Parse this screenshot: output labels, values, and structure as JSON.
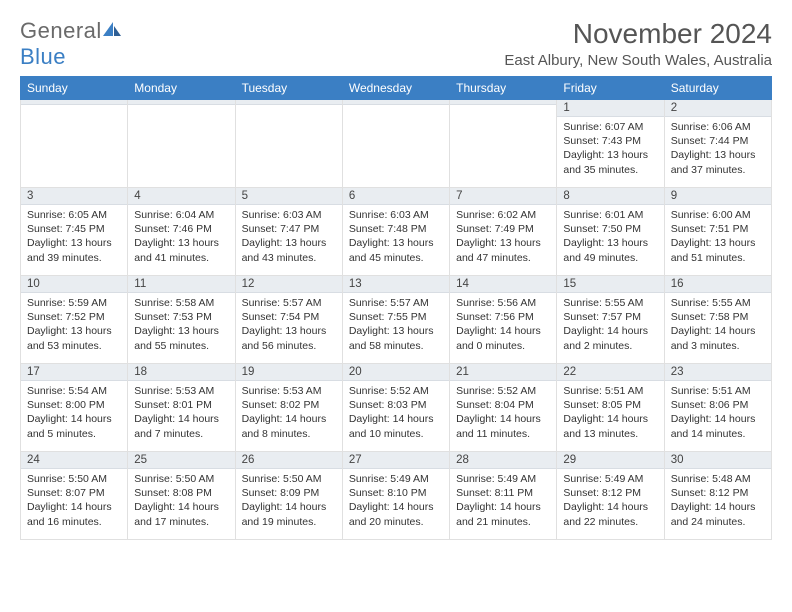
{
  "logo": {
    "text1": "General",
    "text2": "Blue"
  },
  "colors": {
    "accent": "#3b7fc4",
    "header_bg": "#3b7fc4",
    "daynum_bg": "#e9edf1",
    "border": "#e0e0e0",
    "text": "#333333",
    "title": "#555555"
  },
  "title": "November 2024",
  "location": "East Albury, New South Wales, Australia",
  "day_headers": [
    "Sunday",
    "Monday",
    "Tuesday",
    "Wednesday",
    "Thursday",
    "Friday",
    "Saturday"
  ],
  "weeks": [
    [
      {
        "n": "",
        "sr": "",
        "ss": "",
        "dl": ""
      },
      {
        "n": "",
        "sr": "",
        "ss": "",
        "dl": ""
      },
      {
        "n": "",
        "sr": "",
        "ss": "",
        "dl": ""
      },
      {
        "n": "",
        "sr": "",
        "ss": "",
        "dl": ""
      },
      {
        "n": "",
        "sr": "",
        "ss": "",
        "dl": ""
      },
      {
        "n": "1",
        "sr": "Sunrise: 6:07 AM",
        "ss": "Sunset: 7:43 PM",
        "dl": "Daylight: 13 hours and 35 minutes."
      },
      {
        "n": "2",
        "sr": "Sunrise: 6:06 AM",
        "ss": "Sunset: 7:44 PM",
        "dl": "Daylight: 13 hours and 37 minutes."
      }
    ],
    [
      {
        "n": "3",
        "sr": "Sunrise: 6:05 AM",
        "ss": "Sunset: 7:45 PM",
        "dl": "Daylight: 13 hours and 39 minutes."
      },
      {
        "n": "4",
        "sr": "Sunrise: 6:04 AM",
        "ss": "Sunset: 7:46 PM",
        "dl": "Daylight: 13 hours and 41 minutes."
      },
      {
        "n": "5",
        "sr": "Sunrise: 6:03 AM",
        "ss": "Sunset: 7:47 PM",
        "dl": "Daylight: 13 hours and 43 minutes."
      },
      {
        "n": "6",
        "sr": "Sunrise: 6:03 AM",
        "ss": "Sunset: 7:48 PM",
        "dl": "Daylight: 13 hours and 45 minutes."
      },
      {
        "n": "7",
        "sr": "Sunrise: 6:02 AM",
        "ss": "Sunset: 7:49 PM",
        "dl": "Daylight: 13 hours and 47 minutes."
      },
      {
        "n": "8",
        "sr": "Sunrise: 6:01 AM",
        "ss": "Sunset: 7:50 PM",
        "dl": "Daylight: 13 hours and 49 minutes."
      },
      {
        "n": "9",
        "sr": "Sunrise: 6:00 AM",
        "ss": "Sunset: 7:51 PM",
        "dl": "Daylight: 13 hours and 51 minutes."
      }
    ],
    [
      {
        "n": "10",
        "sr": "Sunrise: 5:59 AM",
        "ss": "Sunset: 7:52 PM",
        "dl": "Daylight: 13 hours and 53 minutes."
      },
      {
        "n": "11",
        "sr": "Sunrise: 5:58 AM",
        "ss": "Sunset: 7:53 PM",
        "dl": "Daylight: 13 hours and 55 minutes."
      },
      {
        "n": "12",
        "sr": "Sunrise: 5:57 AM",
        "ss": "Sunset: 7:54 PM",
        "dl": "Daylight: 13 hours and 56 minutes."
      },
      {
        "n": "13",
        "sr": "Sunrise: 5:57 AM",
        "ss": "Sunset: 7:55 PM",
        "dl": "Daylight: 13 hours and 58 minutes."
      },
      {
        "n": "14",
        "sr": "Sunrise: 5:56 AM",
        "ss": "Sunset: 7:56 PM",
        "dl": "Daylight: 14 hours and 0 minutes."
      },
      {
        "n": "15",
        "sr": "Sunrise: 5:55 AM",
        "ss": "Sunset: 7:57 PM",
        "dl": "Daylight: 14 hours and 2 minutes."
      },
      {
        "n": "16",
        "sr": "Sunrise: 5:55 AM",
        "ss": "Sunset: 7:58 PM",
        "dl": "Daylight: 14 hours and 3 minutes."
      }
    ],
    [
      {
        "n": "17",
        "sr": "Sunrise: 5:54 AM",
        "ss": "Sunset: 8:00 PM",
        "dl": "Daylight: 14 hours and 5 minutes."
      },
      {
        "n": "18",
        "sr": "Sunrise: 5:53 AM",
        "ss": "Sunset: 8:01 PM",
        "dl": "Daylight: 14 hours and 7 minutes."
      },
      {
        "n": "19",
        "sr": "Sunrise: 5:53 AM",
        "ss": "Sunset: 8:02 PM",
        "dl": "Daylight: 14 hours and 8 minutes."
      },
      {
        "n": "20",
        "sr": "Sunrise: 5:52 AM",
        "ss": "Sunset: 8:03 PM",
        "dl": "Daylight: 14 hours and 10 minutes."
      },
      {
        "n": "21",
        "sr": "Sunrise: 5:52 AM",
        "ss": "Sunset: 8:04 PM",
        "dl": "Daylight: 14 hours and 11 minutes."
      },
      {
        "n": "22",
        "sr": "Sunrise: 5:51 AM",
        "ss": "Sunset: 8:05 PM",
        "dl": "Daylight: 14 hours and 13 minutes."
      },
      {
        "n": "23",
        "sr": "Sunrise: 5:51 AM",
        "ss": "Sunset: 8:06 PM",
        "dl": "Daylight: 14 hours and 14 minutes."
      }
    ],
    [
      {
        "n": "24",
        "sr": "Sunrise: 5:50 AM",
        "ss": "Sunset: 8:07 PM",
        "dl": "Daylight: 14 hours and 16 minutes."
      },
      {
        "n": "25",
        "sr": "Sunrise: 5:50 AM",
        "ss": "Sunset: 8:08 PM",
        "dl": "Daylight: 14 hours and 17 minutes."
      },
      {
        "n": "26",
        "sr": "Sunrise: 5:50 AM",
        "ss": "Sunset: 8:09 PM",
        "dl": "Daylight: 14 hours and 19 minutes."
      },
      {
        "n": "27",
        "sr": "Sunrise: 5:49 AM",
        "ss": "Sunset: 8:10 PM",
        "dl": "Daylight: 14 hours and 20 minutes."
      },
      {
        "n": "28",
        "sr": "Sunrise: 5:49 AM",
        "ss": "Sunset: 8:11 PM",
        "dl": "Daylight: 14 hours and 21 minutes."
      },
      {
        "n": "29",
        "sr": "Sunrise: 5:49 AM",
        "ss": "Sunset: 8:12 PM",
        "dl": "Daylight: 14 hours and 22 minutes."
      },
      {
        "n": "30",
        "sr": "Sunrise: 5:48 AM",
        "ss": "Sunset: 8:12 PM",
        "dl": "Daylight: 14 hours and 24 minutes."
      }
    ]
  ]
}
